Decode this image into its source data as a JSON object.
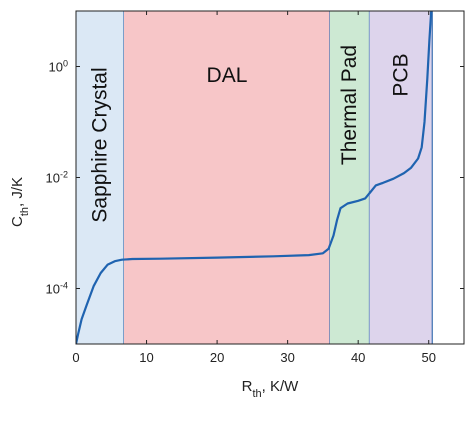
{
  "chart_data": {
    "type": "line",
    "title": "",
    "xlabel": {
      "main": "R",
      "sub": "th",
      "rest": ", K/W"
    },
    "ylabel": {
      "main": "C",
      "sub": "th",
      "rest": ", J/K"
    },
    "xlim": [
      0,
      55
    ],
    "ylim_log10": [
      -5,
      1
    ],
    "y_scale": "log",
    "x_ticks": [
      0,
      10,
      20,
      30,
      40,
      50
    ],
    "x_tick_labels": [
      "0",
      "10",
      "20",
      "30",
      "40",
      "50"
    ],
    "y_ticks_log10": [
      -4,
      -2,
      0
    ],
    "y_tick_labels": [
      {
        "base": "10",
        "exp": "-4"
      },
      {
        "base": "10",
        "exp": "-2"
      },
      {
        "base": "10",
        "exp": "0"
      }
    ],
    "regions": [
      {
        "label": "Sapphire Crystal",
        "x_start": 0,
        "x_end": 6.8,
        "color": "#dbe8f5",
        "label_orientation": "vertical"
      },
      {
        "label": "DAL",
        "x_start": 6.8,
        "x_end": 36,
        "color": "#f7c6c8",
        "label_orientation": "horizontal"
      },
      {
        "label": "Thermal Pad",
        "x_start": 36,
        "x_end": 41.6,
        "color": "#cde9d3",
        "label_orientation": "vertical"
      },
      {
        "label": "PCB",
        "x_start": 41.6,
        "x_end": 50.5,
        "color": "#ddd4ec",
        "label_orientation": "vertical"
      }
    ],
    "series": [
      {
        "color": "#1f63b0",
        "points": [
          [
            0,
            1e-05
          ],
          [
            0.3,
            1.5e-05
          ],
          [
            0.8,
            2.8e-05
          ],
          [
            1.5,
            5e-05
          ],
          [
            2.5,
            0.00011
          ],
          [
            3.5,
            0.00019
          ],
          [
            4.5,
            0.00027
          ],
          [
            5.5,
            0.00031
          ],
          [
            6.5,
            0.00033
          ],
          [
            8,
            0.00034
          ],
          [
            12,
            0.000345
          ],
          [
            20,
            0.00036
          ],
          [
            28,
            0.00038
          ],
          [
            33,
            0.0004
          ],
          [
            35,
            0.00043
          ],
          [
            35.8,
            0.00052
          ],
          [
            36.5,
            0.0009
          ],
          [
            37,
            0.0017
          ],
          [
            37.5,
            0.0028
          ],
          [
            38.5,
            0.0034
          ],
          [
            40,
            0.0038
          ],
          [
            41,
            0.0042
          ],
          [
            41.8,
            0.0056
          ],
          [
            42.5,
            0.0072
          ],
          [
            43.5,
            0.008
          ],
          [
            45,
            0.0095
          ],
          [
            46.5,
            0.012
          ],
          [
            47.5,
            0.015
          ],
          [
            48.5,
            0.022
          ],
          [
            49,
            0.035
          ],
          [
            49.4,
            0.1
          ],
          [
            49.8,
            0.6
          ],
          [
            50.1,
            3
          ],
          [
            50.4,
            12
          ]
        ]
      }
    ],
    "grid": false,
    "legend": "none"
  }
}
